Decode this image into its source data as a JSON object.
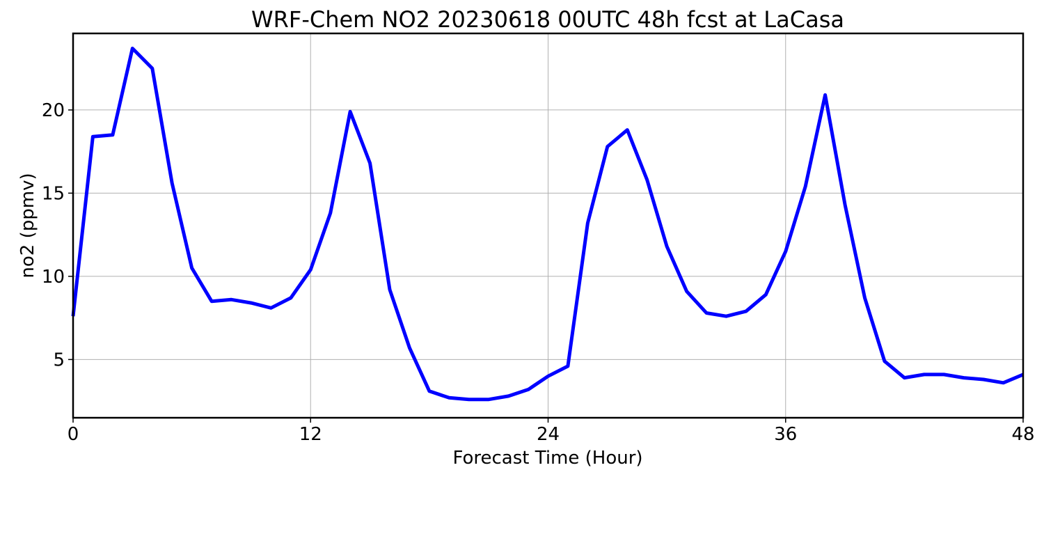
{
  "chart_data": {
    "type": "line",
    "title": "WRF-Chem NO2  20230618 00UTC 48h fcst at LaCasa",
    "xlabel": "Forecast Time (Hour)",
    "ylabel": "no2  (ppmv)",
    "xlim": [
      0,
      48
    ],
    "ylim": [
      1.5,
      24.6
    ],
    "xticks": [
      0,
      12,
      24,
      36,
      48
    ],
    "yticks": [
      5,
      10,
      15,
      20
    ],
    "grid": true,
    "legend": "none",
    "series": [
      {
        "color": "#0000ff",
        "x": [
          0,
          1,
          2,
          3,
          4,
          5,
          6,
          7,
          8,
          9,
          10,
          11,
          12,
          13,
          14,
          15,
          16,
          17,
          18,
          19,
          20,
          21,
          22,
          23,
          24,
          25,
          26,
          27,
          28,
          29,
          30,
          31,
          32,
          33,
          34,
          35,
          36,
          37,
          38,
          39,
          40,
          41,
          42,
          43,
          44,
          45,
          46,
          47,
          48
        ],
        "y": [
          7.6,
          18.4,
          18.5,
          23.7,
          22.5,
          15.6,
          10.5,
          8.5,
          8.6,
          8.4,
          8.1,
          8.7,
          10.4,
          13.8,
          19.9,
          16.8,
          9.2,
          5.7,
          3.1,
          2.7,
          2.6,
          2.6,
          2.8,
          3.2,
          4.0,
          4.6,
          13.2,
          17.8,
          18.8,
          15.8,
          11.8,
          9.1,
          7.8,
          7.6,
          7.9,
          8.9,
          11.5,
          15.4,
          20.9,
          14.3,
          8.7,
          4.9,
          3.9,
          4.1,
          4.1,
          3.9,
          3.8,
          3.6,
          4.1
        ]
      }
    ]
  }
}
